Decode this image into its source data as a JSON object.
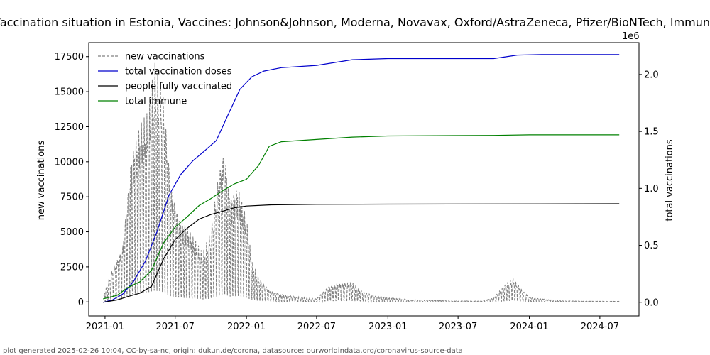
{
  "chart_data": {
    "type": "line",
    "title": "Vaccination situation in Estonia, Vaccines: Johnson&Johnson, Moderna, Novavax, Oxford/AstraZeneca, Pfizer/BioNTech, Immune",
    "ylabel_left": "new vaccinations",
    "ylabel_right": "total vaccinations",
    "right_axis_multiplier": "1e6",
    "x_ticks": [
      "2021-01",
      "2021-07",
      "2022-01",
      "2022-07",
      "2023-01",
      "2023-07",
      "2024-01",
      "2024-07"
    ],
    "xlim": [
      "2020-11-20",
      "2024-10-10"
    ],
    "ylim_left": [
      -1000,
      18500
    ],
    "y_ticks_left": [
      "0",
      "2500",
      "5000",
      "7500",
      "10000",
      "12500",
      "15000",
      "17500"
    ],
    "ylim_right": [
      -0.12,
      2.28
    ],
    "y_ticks_right": [
      "0.0",
      "0.5",
      "1.0",
      "1.5",
      "2.0"
    ],
    "legend_position": "top-left",
    "grid": false,
    "series": [
      {
        "name": "new vaccinations",
        "axis": "left",
        "color": "#808080",
        "style": "dashed",
        "envelope": [
          [
            "2020-12-28",
            500
          ],
          [
            "2021-01-20",
            2500
          ],
          [
            "2021-02-15",
            4200
          ],
          [
            "2021-03-10",
            11000
          ],
          [
            "2021-04-01",
            12800
          ],
          [
            "2021-04-20",
            13500
          ],
          [
            "2021-05-10",
            17300
          ],
          [
            "2021-06-01",
            15500
          ],
          [
            "2021-06-20",
            9000
          ],
          [
            "2021-07-10",
            6500
          ],
          [
            "2021-08-01",
            5500
          ],
          [
            "2021-08-20",
            4500
          ],
          [
            "2021-09-10",
            3500
          ],
          [
            "2021-10-01",
            5200
          ],
          [
            "2021-10-20",
            9800
          ],
          [
            "2021-11-05",
            11900
          ],
          [
            "2021-11-20",
            8000
          ],
          [
            "2021-12-10",
            8500
          ],
          [
            "2022-01-01",
            6000
          ],
          [
            "2022-01-15",
            3000
          ],
          [
            "2022-02-01",
            1800
          ],
          [
            "2022-03-01",
            900
          ],
          [
            "2022-04-01",
            600
          ],
          [
            "2022-05-01",
            400
          ],
          [
            "2022-06-01",
            300
          ],
          [
            "2022-07-01",
            250
          ],
          [
            "2022-08-01",
            1200
          ],
          [
            "2022-09-01",
            1400
          ],
          [
            "2022-10-01",
            1400
          ],
          [
            "2022-11-01",
            700
          ],
          [
            "2022-12-01",
            450
          ],
          [
            "2023-01-01",
            300
          ],
          [
            "2023-03-01",
            150
          ],
          [
            "2023-06-01",
            80
          ],
          [
            "2023-09-01",
            60
          ],
          [
            "2023-10-01",
            300
          ],
          [
            "2023-11-01",
            1300
          ],
          [
            "2023-11-20",
            1700
          ],
          [
            "2023-12-10",
            1000
          ],
          [
            "2024-01-01",
            350
          ],
          [
            "2024-03-01",
            120
          ],
          [
            "2024-05-01",
            60
          ],
          [
            "2024-08-20",
            40
          ]
        ]
      },
      {
        "name": "total vaccination doses",
        "axis": "right",
        "color": "#0000cc",
        "points": [
          [
            "2020-12-27",
            0
          ],
          [
            "2021-01-20",
            0.02
          ],
          [
            "2021-02-15",
            0.07
          ],
          [
            "2021-03-15",
            0.18
          ],
          [
            "2021-04-15",
            0.36
          ],
          [
            "2021-05-15",
            0.62
          ],
          [
            "2021-06-15",
            0.94
          ],
          [
            "2021-07-15",
            1.12
          ],
          [
            "2021-08-15",
            1.24
          ],
          [
            "2021-09-15",
            1.33
          ],
          [
            "2021-10-15",
            1.42
          ],
          [
            "2021-11-15",
            1.65
          ],
          [
            "2021-12-15",
            1.87
          ],
          [
            "2022-01-15",
            1.98
          ],
          [
            "2022-02-15",
            2.03
          ],
          [
            "2022-04-01",
            2.06
          ],
          [
            "2022-07-01",
            2.08
          ],
          [
            "2022-10-01",
            2.13
          ],
          [
            "2023-01-01",
            2.14
          ],
          [
            "2023-06-01",
            2.14
          ],
          [
            "2023-10-01",
            2.14
          ],
          [
            "2023-12-01",
            2.17
          ],
          [
            "2024-02-01",
            2.175
          ],
          [
            "2024-08-20",
            2.175
          ]
        ]
      },
      {
        "name": "people fully vaccinated",
        "axis": "right",
        "color": "#000000",
        "points": [
          [
            "2020-12-27",
            0
          ],
          [
            "2021-02-01",
            0.02
          ],
          [
            "2021-03-01",
            0.05
          ],
          [
            "2021-04-01",
            0.08
          ],
          [
            "2021-05-01",
            0.14
          ],
          [
            "2021-06-01",
            0.38
          ],
          [
            "2021-07-01",
            0.55
          ],
          [
            "2021-08-01",
            0.65
          ],
          [
            "2021-09-01",
            0.73
          ],
          [
            "2021-10-01",
            0.77
          ],
          [
            "2021-11-01",
            0.8
          ],
          [
            "2021-12-01",
            0.83
          ],
          [
            "2022-01-01",
            0.845
          ],
          [
            "2022-03-01",
            0.855
          ],
          [
            "2022-07-01",
            0.86
          ],
          [
            "2023-01-01",
            0.862
          ],
          [
            "2024-08-20",
            0.865
          ]
        ]
      },
      {
        "name": "total immune",
        "axis": "right",
        "color": "#008000",
        "points": [
          [
            "2020-12-27",
            0.03
          ],
          [
            "2021-02-01",
            0.06
          ],
          [
            "2021-03-01",
            0.13
          ],
          [
            "2021-04-01",
            0.18
          ],
          [
            "2021-05-01",
            0.28
          ],
          [
            "2021-06-01",
            0.52
          ],
          [
            "2021-07-01",
            0.66
          ],
          [
            "2021-08-01",
            0.75
          ],
          [
            "2021-09-01",
            0.85
          ],
          [
            "2021-10-01",
            0.91
          ],
          [
            "2021-11-01",
            0.98
          ],
          [
            "2021-12-01",
            1.04
          ],
          [
            "2022-01-01",
            1.08
          ],
          [
            "2022-02-01",
            1.2
          ],
          [
            "2022-03-01",
            1.37
          ],
          [
            "2022-04-01",
            1.41
          ],
          [
            "2022-07-01",
            1.43
          ],
          [
            "2022-10-01",
            1.45
          ],
          [
            "2023-01-01",
            1.46
          ],
          [
            "2023-10-01",
            1.465
          ],
          [
            "2024-01-01",
            1.47
          ],
          [
            "2024-08-20",
            1.47
          ]
        ]
      }
    ]
  },
  "footer": "plot generated 2025-02-26 10:04, CC-by-sa-nc, origin: dukun.de/corona, datasource: ourworldindata.org/coronavirus-source-data"
}
